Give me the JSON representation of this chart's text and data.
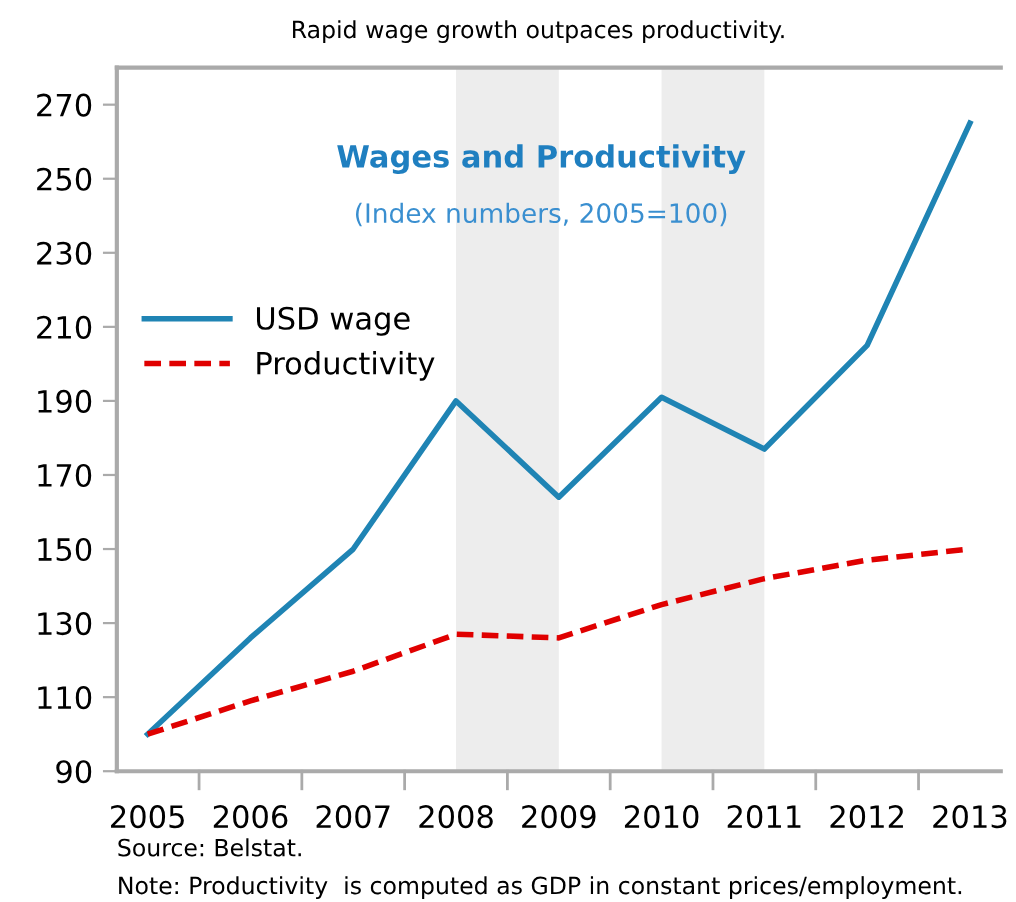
{
  "chart_data": {
    "type": "line",
    "title": "Rapid wage growth outpaces productivity.",
    "subtitle": "Wages and Productivity",
    "categories": [
      "2005",
      "2006",
      "2007",
      "2008",
      "2009",
      "2010",
      "2011",
      "2012",
      "2013"
    ],
    "series": [
      {
        "name": "USD wage",
        "color": "#1f84b4",
        "line_style": "solid",
        "values": [
          100,
          126,
          150,
          190,
          164,
          191,
          177,
          205,
          265
        ]
      },
      {
        "name": "Productivity",
        "color": "#e00000",
        "line_style": "dashed",
        "values": [
          100,
          109,
          117,
          127,
          126,
          135,
          142,
          147,
          150
        ]
      }
    ],
    "ylim": [
      90,
      280
    ],
    "yticks": [
      90,
      110,
      130,
      150,
      170,
      190,
      210,
      230,
      250,
      270
    ],
    "bands": [
      {
        "axis": "x",
        "from": "2008",
        "to": "2009",
        "color": "#ededed"
      },
      {
        "axis": "x",
        "from": "2010",
        "to": "2011",
        "color": "#ededed"
      }
    ],
    "annotations": [
      "(Index numbers, 2005=100)",
      "Source: Belstat.",
      "Note: Productivity  is computed as GDP in constant prices/employment."
    ],
    "legend": "top left",
    "grid": false,
    "marker": "none"
  }
}
